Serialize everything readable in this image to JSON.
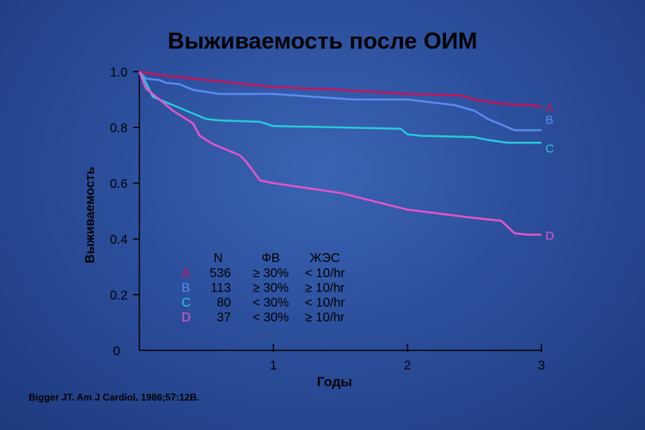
{
  "title": "Выживаемость после ОИМ",
  "source": "Bigger JT.  Am J Cardiol.  1986;57:12B.",
  "chart_data": {
    "type": "line",
    "title": "Выживаемость после ОИМ",
    "xlabel": "Годы",
    "ylabel": "Выживаемость",
    "xlim": [
      0,
      3
    ],
    "ylim": [
      0,
      1.0
    ],
    "x_ticks": [
      {
        "v": 1,
        "label": "1"
      },
      {
        "v": 2,
        "label": "2"
      },
      {
        "v": 3,
        "label": "3"
      }
    ],
    "x_origin_label": "0",
    "y_ticks": [
      {
        "v": 0.2,
        "label": "0.2"
      },
      {
        "v": 0.4,
        "label": "0.4"
      },
      {
        "v": 0.6,
        "label": "0.6"
      },
      {
        "v": 0.8,
        "label": "0.8"
      },
      {
        "v": 1.0,
        "label": "1.0"
      }
    ],
    "grid": false,
    "series": [
      {
        "name": "A",
        "color": "#c8145a",
        "points": [
          [
            0,
            1.0
          ],
          [
            0.2,
            0.985
          ],
          [
            0.4,
            0.975
          ],
          [
            0.6,
            0.965
          ],
          [
            0.8,
            0.955
          ],
          [
            1.0,
            0.945
          ],
          [
            1.5,
            0.935
          ],
          [
            2.0,
            0.92
          ],
          [
            2.4,
            0.915
          ],
          [
            2.5,
            0.9
          ],
          [
            2.7,
            0.885
          ],
          [
            2.9,
            0.88
          ],
          [
            3.0,
            0.875
          ]
        ]
      },
      {
        "name": "B",
        "color": "#5a8cf0",
        "points": [
          [
            0,
            1.0
          ],
          [
            0.05,
            0.975
          ],
          [
            0.15,
            0.97
          ],
          [
            0.2,
            0.96
          ],
          [
            0.3,
            0.955
          ],
          [
            0.4,
            0.935
          ],
          [
            0.6,
            0.92
          ],
          [
            1.0,
            0.92
          ],
          [
            1.3,
            0.91
          ],
          [
            1.6,
            0.9
          ],
          [
            2.0,
            0.9
          ],
          [
            2.35,
            0.88
          ],
          [
            2.5,
            0.86
          ],
          [
            2.6,
            0.83
          ],
          [
            2.75,
            0.8
          ],
          [
            2.8,
            0.79
          ],
          [
            3.0,
            0.79
          ]
        ]
      },
      {
        "name": "C",
        "color": "#28c8dc",
        "points": [
          [
            0,
            1.0
          ],
          [
            0.05,
            0.96
          ],
          [
            0.1,
            0.91
          ],
          [
            0.25,
            0.88
          ],
          [
            0.35,
            0.86
          ],
          [
            0.5,
            0.83
          ],
          [
            0.6,
            0.825
          ],
          [
            0.9,
            0.82
          ],
          [
            1.0,
            0.805
          ],
          [
            1.5,
            0.8
          ],
          [
            1.95,
            0.795
          ],
          [
            2.0,
            0.775
          ],
          [
            2.1,
            0.77
          ],
          [
            2.5,
            0.765
          ],
          [
            2.6,
            0.755
          ],
          [
            2.75,
            0.745
          ],
          [
            3.0,
            0.745
          ]
        ]
      },
      {
        "name": "D",
        "color": "#e655c8",
        "points": [
          [
            0,
            1.0
          ],
          [
            0.05,
            0.94
          ],
          [
            0.15,
            0.9
          ],
          [
            0.25,
            0.86
          ],
          [
            0.35,
            0.83
          ],
          [
            0.4,
            0.815
          ],
          [
            0.45,
            0.77
          ],
          [
            0.55,
            0.74
          ],
          [
            0.65,
            0.72
          ],
          [
            0.75,
            0.7
          ],
          [
            0.8,
            0.675
          ],
          [
            0.9,
            0.61
          ],
          [
            1.0,
            0.6
          ],
          [
            1.5,
            0.565
          ],
          [
            2.0,
            0.505
          ],
          [
            2.25,
            0.49
          ],
          [
            2.5,
            0.475
          ],
          [
            2.7,
            0.465
          ],
          [
            2.8,
            0.42
          ],
          [
            2.9,
            0.415
          ],
          [
            3.0,
            0.415
          ]
        ]
      }
    ],
    "table": {
      "headers": [
        "",
        "N",
        "ФВ",
        "ЖЭС"
      ],
      "rows": [
        {
          "label": "A",
          "color": "#c8145a",
          "n": "536",
          "ef": "≥ 30%",
          "pvc": "< 10/hr"
        },
        {
          "label": "B",
          "color": "#5a8cf0",
          "n": "113",
          "ef": "≥ 30%",
          "pvc": "≥ 10/hr"
        },
        {
          "label": "C",
          "color": "#28c8dc",
          "n": "80",
          "ef": "< 30%",
          "pvc": "< 10/hr"
        },
        {
          "label": "D",
          "color": "#e655c8",
          "n": "37",
          "ef": "< 30%",
          "pvc": "≥ 10/hr"
        }
      ]
    }
  }
}
